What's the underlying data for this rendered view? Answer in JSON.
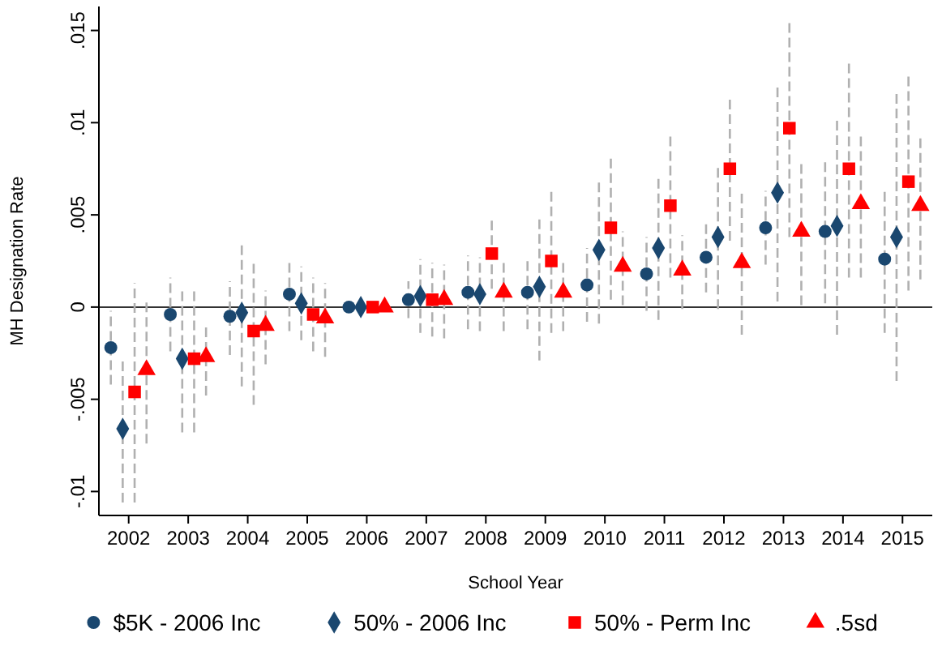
{
  "chart_data": {
    "type": "scatter",
    "xlabel": "School Year",
    "ylabel": "MH Designation Rate",
    "xlim": [
      2001.5,
      2015.5
    ],
    "ylim": [
      -0.0113,
      0.0163
    ],
    "xticks": [
      2002,
      2003,
      2004,
      2005,
      2006,
      2007,
      2008,
      2009,
      2010,
      2011,
      2012,
      2013,
      2014,
      2015
    ],
    "yticks": [
      {
        "value": -0.01,
        "label": "-.01"
      },
      {
        "value": -0.005,
        "label": "-.005"
      },
      0,
      {
        "value": 0.005,
        "label": ".005"
      },
      {
        "value": 0.01,
        "label": ".01"
      },
      {
        "value": 0.015,
        "label": ".015"
      }
    ],
    "ref_lines": [
      {
        "axis": "y",
        "value": 0,
        "color": "#333333"
      }
    ],
    "grid": false,
    "legend": "bottom",
    "series": [
      {
        "name": "$5K - 2006 Inc",
        "color": "#1a476f",
        "marker": "circle",
        "x": [
          2001.7,
          2002.7,
          2003.7,
          2004.7,
          2005.7,
          2006.7,
          2007.7,
          2008.7,
          2009.7,
          2010.7,
          2011.7,
          2012.7,
          2013.7,
          2014.7
        ],
        "values": [
          -0.0022,
          -0.0004,
          -0.0005,
          0.0007,
          0,
          0.0004,
          0.0008,
          0.0008,
          0.0012,
          0.0018,
          0.0027,
          0.0043,
          0.0041,
          0.0026
        ],
        "errors": [
          [
            -0.0042,
            -0.0002
          ],
          [
            -0.0024,
            0.0016
          ],
          [
            -0.0026,
            0.0014
          ],
          [
            -0.0013,
            0.0026
          ],
          null,
          [
            -0.0006,
            0.0014
          ],
          [
            -0.0012,
            0.0028
          ],
          [
            -0.0012,
            0.0027
          ],
          [
            -0.0008,
            0.0032
          ],
          [
            -0.0002,
            0.0038
          ],
          [
            0.0008,
            0.0047
          ],
          [
            0.0023,
            0.0063
          ],
          [
            0.0002,
            0.0079
          ],
          [
            -0.0014,
            0.0064
          ]
        ]
      },
      {
        "name": "50% - 2006 Inc",
        "color": "#1a476f",
        "marker": "diamond",
        "x": [
          2001.9,
          2002.9,
          2003.9,
          2004.9,
          2005.9,
          2006.9,
          2007.9,
          2008.9,
          2009.9,
          2010.9,
          2011.9,
          2012.9,
          2013.9,
          2014.9
        ],
        "values": [
          -0.0066,
          -0.0028,
          -0.0003,
          0.0002,
          0,
          0.0006,
          0.0007,
          0.0011,
          0.0031,
          0.0032,
          0.0038,
          0.0062,
          0.0044,
          0.0038
        ],
        "errors": [
          [
            -0.0106,
            -0.0028
          ],
          [
            -0.0068,
            0.001
          ],
          [
            -0.0043,
            0.0035
          ],
          [
            -0.0018,
            0.0022
          ],
          null,
          [
            -0.0014,
            0.0026
          ],
          [
            -0.0013,
            0.0027
          ],
          [
            -0.0029,
            0.0049
          ],
          [
            -0.0009,
            0.0069
          ],
          [
            -0.0007,
            0.007
          ],
          [
            -0.0001,
            0.0076
          ],
          [
            0.0003,
            0.0121
          ],
          [
            -0.0015,
            0.0103
          ],
          [
            -0.004,
            0.0117
          ]
        ]
      },
      {
        "name": "50% - Perm Inc",
        "color": "#ff0000",
        "marker": "square",
        "x": [
          2002.1,
          2003.1,
          2004.1,
          2005.1,
          2006.1,
          2007.1,
          2008.1,
          2009.1,
          2010.1,
          2011.1,
          2012.1,
          2013.1,
          2014.1,
          2015.1
        ],
        "values": [
          -0.0046,
          -0.0028,
          -0.0013,
          -0.0004,
          0,
          0.0004,
          0.0029,
          0.0025,
          0.0043,
          0.0055,
          0.0075,
          0.0097,
          0.0075,
          0.0068
        ],
        "errors": [
          [
            -0.0106,
            0.0013
          ],
          [
            -0.0068,
            0.001
          ],
          [
            -0.0053,
            0.0025
          ],
          [
            -0.0024,
            0.0016
          ],
          null,
          [
            -0.0016,
            0.0024
          ],
          [
            0.001,
            0.0049
          ],
          [
            -0.0014,
            0.0063
          ],
          [
            0.0004,
            0.0081
          ],
          [
            0.0016,
            0.0093
          ],
          [
            0.0036,
            0.0113
          ],
          [
            0.0038,
            0.0156
          ],
          [
            0.0016,
            0.0134
          ],
          [
            0.0009,
            0.0127
          ]
        ]
      },
      {
        "name": ".5sd",
        "color": "#ff0000",
        "marker": "triangle",
        "x": [
          2002.3,
          2003.3,
          2004.3,
          2005.3,
          2006.3,
          2007.3,
          2008.3,
          2009.3,
          2010.3,
          2011.3,
          2012.3,
          2013.3,
          2014.3,
          2015.3
        ],
        "values": [
          -0.0034,
          -0.0027,
          -0.001,
          -0.0006,
          0,
          0.0004,
          0.0008,
          0.0008,
          0.0022,
          0.002,
          0.0024,
          0.0041,
          0.0056,
          0.0055
        ],
        "errors": [
          [
            -0.0074,
            0.0004
          ],
          [
            -0.0048,
            -0.0009
          ],
          [
            -0.0031,
            0.0009
          ],
          [
            -0.0027,
            0.0013
          ],
          null,
          [
            -0.0017,
            0.0023
          ],
          [
            -0.0013,
            0.0026
          ],
          [
            -0.0013,
            0.0026
          ],
          [
            0.0001,
            0.0041
          ],
          [
            -0.0001,
            0.0039
          ],
          [
            -0.0015,
            0.0062
          ],
          [
            0.0001,
            0.0078
          ],
          [
            0.0016,
            0.0094
          ],
          [
            0.0015,
            0.0092
          ]
        ]
      }
    ]
  }
}
